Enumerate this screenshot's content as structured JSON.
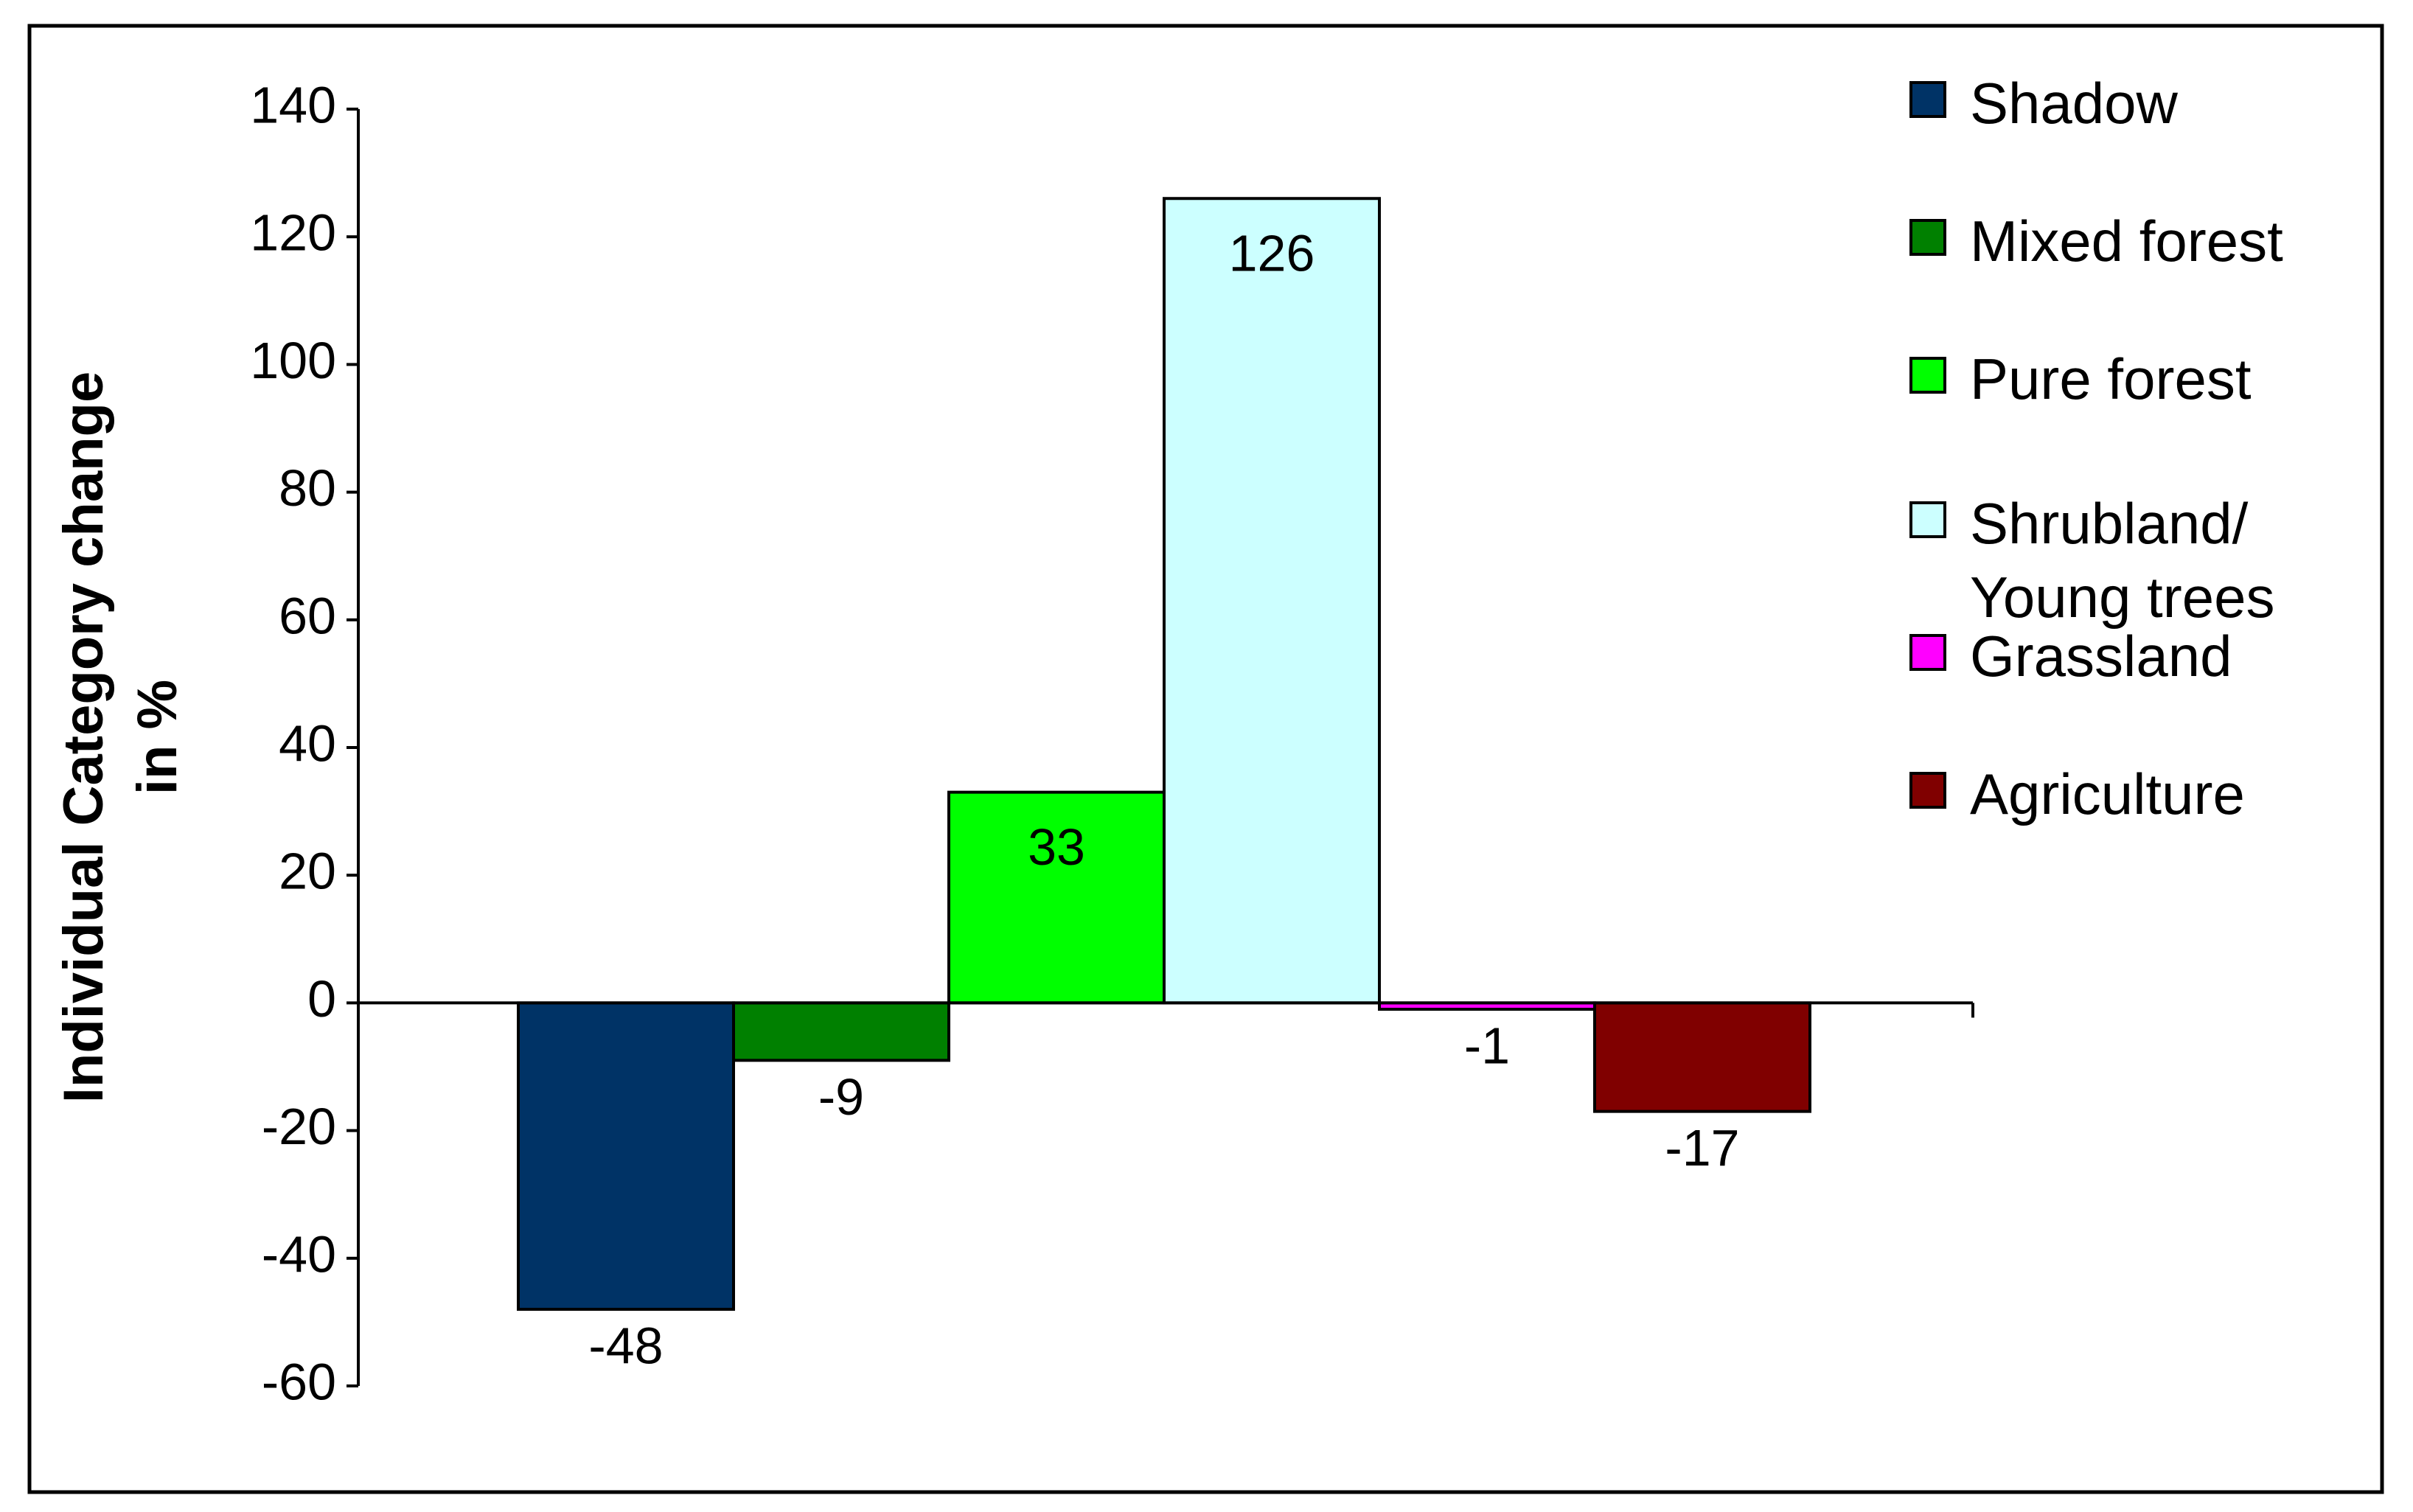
{
  "chart_data": {
    "type": "bar",
    "y_label": [
      "Individual Category change",
      "in %"
    ],
    "series": [
      {
        "name": "Shadow",
        "color": "#003366",
        "values": [
          -48
        ]
      },
      {
        "name": "Mixed forest",
        "color": "#008000",
        "values": [
          -9
        ]
      },
      {
        "name": "Pure forest",
        "color": "#00ff00",
        "values": [
          33
        ]
      },
      {
        "name": "Shrubland/ Young trees",
        "color": "#ccffff",
        "values": [
          126
        ]
      },
      {
        "name": "Grassland",
        "color": "#ff00ff",
        "values": [
          -1
        ]
      },
      {
        "name": "Agriculture",
        "color": "#800000",
        "values": [
          -17
        ]
      }
    ],
    "ylim": [
      -60,
      140
    ],
    "yticks": [
      -60,
      -40,
      -20,
      0,
      20,
      40,
      60,
      80,
      100,
      120,
      140
    ],
    "grid": false,
    "legend": "right"
  }
}
